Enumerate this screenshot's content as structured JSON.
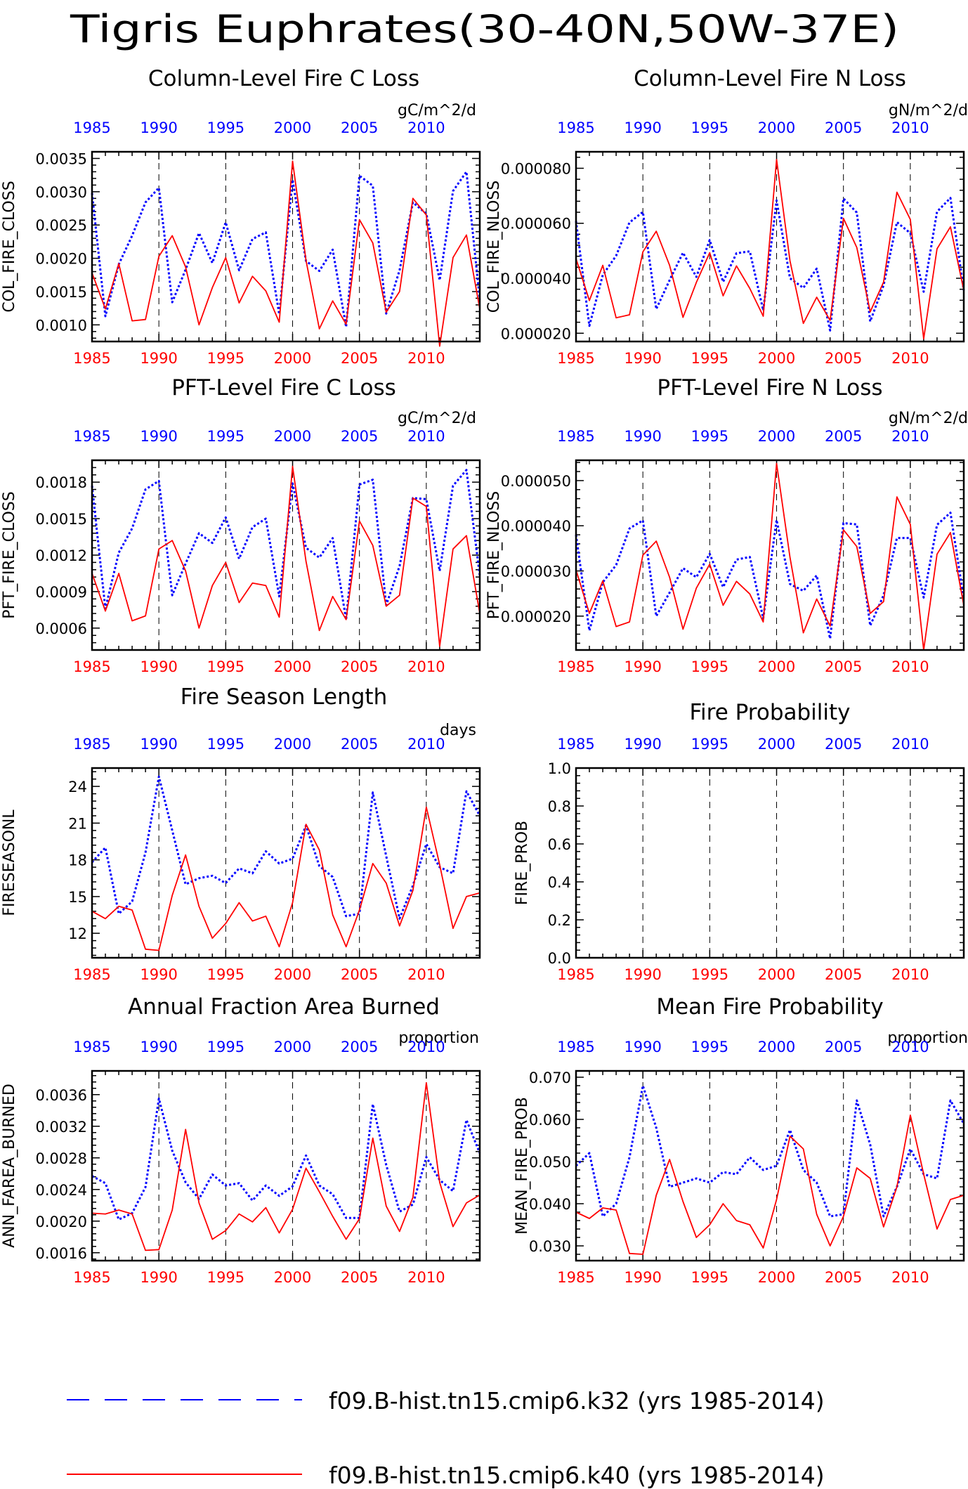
{
  "title": "Tigris Euphrates(30-40N,50W-37E)",
  "colors": {
    "case1": "#0000ff",
    "case2": "#ff0000",
    "axis": "#000000"
  },
  "legend": [
    {
      "label": "f09.B-hist.tn15.cmip6.k32 (yrs 1985-2014)",
      "color": "#0000ff",
      "style": "dashed"
    },
    {
      "label": "f09.B-hist.tn15.cmip6.k40 (yrs 1985-2014)",
      "color": "#ff0000",
      "style": "solid"
    }
  ],
  "chart_data": [
    {
      "type": "line",
      "title": "Column-Level Fire C Loss",
      "units": "gC/m^2/d",
      "ylabel": "COL_FIRE_CLOSS",
      "xlim": [
        1985,
        2014
      ],
      "ylim": [
        0.00075,
        0.0036
      ],
      "yticks": [
        0.001,
        0.0015,
        0.002,
        0.0025,
        0.003,
        0.0035
      ],
      "ytick_labels": [
        "0.0010",
        "0.0015",
        "0.0020",
        "0.0025",
        "0.0030",
        "0.0035"
      ],
      "xticks": [
        1985,
        1990,
        1995,
        2000,
        2005,
        2010
      ],
      "x": [
        1985,
        1986,
        1987,
        1988,
        1989,
        1990,
        1991,
        1992,
        1993,
        1994,
        1995,
        1996,
        1997,
        1998,
        1999,
        2000,
        2001,
        2002,
        2003,
        2004,
        2005,
        2006,
        2007,
        2008,
        2009,
        2010,
        2011,
        2012,
        2013,
        2014
      ],
      "series": [
        {
          "name": "f09.B-hist.tn15.cmip6.k32 (yrs 1985-2014)",
          "values": [
            0.00298,
            0.00113,
            0.00191,
            0.00234,
            0.00284,
            0.00306,
            0.00134,
            0.00183,
            0.00238,
            0.00193,
            0.00254,
            0.00182,
            0.00229,
            0.00239,
            0.00116,
            0.00318,
            0.00196,
            0.00181,
            0.00213,
            0.00097,
            0.00324,
            0.00309,
            0.00117,
            0.00182,
            0.00284,
            0.00267,
            0.00167,
            0.00301,
            0.0033,
            0.00138
          ]
        },
        {
          "name": "f09.B-hist.tn15.cmip6.k40 (yrs 1985-2014)",
          "values": [
            0.00178,
            0.00124,
            0.00192,
            0.00106,
            0.00108,
            0.00203,
            0.00234,
            0.00187,
            0.001,
            0.00156,
            0.00201,
            0.00133,
            0.00173,
            0.00151,
            0.00104,
            0.00346,
            0.00197,
            0.00094,
            0.00136,
            0.00101,
            0.00258,
            0.00223,
            0.00119,
            0.0015,
            0.0029,
            0.00265,
            0.00068,
            0.00201,
            0.00235,
            0.00124
          ]
        }
      ]
    },
    {
      "type": "line",
      "title": "Column-Level Fire N Loss",
      "units": "gN/m^2/d",
      "ylabel": "COL_FIRE_NLOSS",
      "xlim": [
        1985,
        2014
      ],
      "ylim": [
        1.7e-05,
        8.6e-05
      ],
      "yticks": [
        2e-05,
        4e-05,
        6e-05,
        8e-05
      ],
      "ytick_labels": [
        "0.000020",
        "0.000040",
        "0.000060",
        "0.000080"
      ],
      "xticks": [
        1985,
        1990,
        1995,
        2000,
        2005,
        2010
      ],
      "x": [
        1985,
        1986,
        1987,
        1988,
        1989,
        1990,
        1991,
        1992,
        1993,
        1994,
        1995,
        1996,
        1997,
        1998,
        1999,
        2000,
        2001,
        2002,
        2003,
        2004,
        2005,
        2006,
        2007,
        2008,
        2009,
        2010,
        2011,
        2012,
        2013,
        2014
      ],
      "series": [
        {
          "name": "f09.B-hist.tn15.cmip6.k32 (yrs 1985-2014)",
          "values": [
            6.08e-05,
            2.27e-05,
            4.12e-05,
            4.82e-05,
            6.03e-05,
            6.41e-05,
            2.88e-05,
            3.93e-05,
            4.93e-05,
            4.05e-05,
            5.39e-05,
            3.87e-05,
            4.91e-05,
            4.98e-05,
            2.83e-05,
            6.83e-05,
            4e-05,
            3.65e-05,
            4.35e-05,
            2.1e-05,
            6.9e-05,
            6.39e-05,
            2.43e-05,
            3.74e-05,
            6.04e-05,
            5.64e-05,
            3.51e-05,
            6.42e-05,
            6.92e-05,
            3.56e-05
          ]
        },
        {
          "name": "f09.B-hist.tn15.cmip6.k40 (yrs 1985-2014)",
          "values": [
            4.71e-05,
            3.19e-05,
            4.47e-05,
            2.56e-05,
            2.67e-05,
            4.96e-05,
            5.71e-05,
            4.47e-05,
            2.58e-05,
            3.85e-05,
            4.93e-05,
            3.36e-05,
            4.45e-05,
            3.63e-05,
            2.62e-05,
            8.32e-05,
            4.63e-05,
            2.36e-05,
            3.31e-05,
            2.47e-05,
            6.18e-05,
            5.12e-05,
            2.78e-05,
            3.86e-05,
            7.13e-05,
            6.14e-05,
            1.8e-05,
            5.07e-05,
            5.87e-05,
            3.56e-05
          ]
        }
      ]
    },
    {
      "type": "line",
      "title": "PFT-Level Fire C Loss",
      "units": "gC/m^2/d",
      "ylabel": "PFT_FIRE_CLOSS",
      "xlim": [
        1985,
        2014
      ],
      "ylim": [
        0.00042,
        0.00198
      ],
      "yticks": [
        0.0006,
        0.0009,
        0.0012,
        0.0015,
        0.0018
      ],
      "ytick_labels": [
        "0.0006",
        "0.0009",
        "0.0012",
        "0.0015",
        "0.0018"
      ],
      "xticks": [
        1985,
        1990,
        1995,
        2000,
        2005,
        2010
      ],
      "x": [
        1985,
        1986,
        1987,
        1988,
        1989,
        1990,
        1991,
        1992,
        1993,
        1994,
        1995,
        1996,
        1997,
        1998,
        1999,
        2000,
        2001,
        2002,
        2003,
        2004,
        2005,
        2006,
        2007,
        2008,
        2009,
        2010,
        2011,
        2012,
        2013,
        2014
      ],
      "series": [
        {
          "name": "f09.B-hist.tn15.cmip6.k32 (yrs 1985-2014)",
          "values": [
            0.00177,
            0.00076,
            0.00122,
            0.00142,
            0.00174,
            0.00181,
            0.00087,
            0.00113,
            0.00138,
            0.0013,
            0.00151,
            0.00117,
            0.00143,
            0.0015,
            0.00086,
            0.00179,
            0.00126,
            0.00118,
            0.00134,
            0.00067,
            0.00178,
            0.00182,
            0.00079,
            0.00111,
            0.00167,
            0.00166,
            0.00107,
            0.00177,
            0.0019,
            0.00103
          ]
        },
        {
          "name": "f09.B-hist.tn15.cmip6.k40 (yrs 1985-2014)",
          "values": [
            0.00105,
            0.00074,
            0.00105,
            0.00066,
            0.0007,
            0.00125,
            0.00132,
            0.00107,
            0.0006,
            0.00095,
            0.00114,
            0.00081,
            0.00097,
            0.00095,
            0.00069,
            0.00193,
            0.00115,
            0.00058,
            0.00086,
            0.00067,
            0.00148,
            0.00128,
            0.00078,
            0.00087,
            0.00167,
            0.0016,
            0.00045,
            0.00125,
            0.00136,
            0.00072
          ]
        }
      ]
    },
    {
      "type": "line",
      "title": "PFT-Level Fire N Loss",
      "units": "gN/m^2/d",
      "ylabel": "PFT_FIRE_NLOSS",
      "xlim": [
        1985,
        2014
      ],
      "ylim": [
        1.25e-05,
        5.45e-05
      ],
      "yticks": [
        2e-05,
        3e-05,
        4e-05,
        5e-05
      ],
      "ytick_labels": [
        "0.000020",
        "0.000030",
        "0.000040",
        "0.000050"
      ],
      "xticks": [
        1985,
        1990,
        1995,
        2000,
        2005,
        2010
      ],
      "x": [
        1985,
        1986,
        1987,
        1988,
        1989,
        1990,
        1991,
        1992,
        1993,
        1994,
        1995,
        1996,
        1997,
        1998,
        1999,
        2000,
        2001,
        2002,
        2003,
        2004,
        2005,
        2006,
        2007,
        2008,
        2009,
        2010,
        2011,
        2012,
        2013,
        2014
      ],
      "series": [
        {
          "name": "f09.B-hist.tn15.cmip6.k32 (yrs 1985-2014)",
          "values": [
            3.8e-05,
            1.68e-05,
            2.75e-05,
            3.13e-05,
            3.94e-05,
            4.12e-05,
            2e-05,
            2.52e-05,
            3.06e-05,
            2.86e-05,
            3.38e-05,
            2.64e-05,
            3.25e-05,
            3.31e-05,
            1.95e-05,
            4.13e-05,
            2.71e-05,
            2.56e-05,
            2.9e-05,
            1.5e-05,
            4.06e-05,
            4.03e-05,
            1.79e-05,
            2.46e-05,
            3.73e-05,
            3.73e-05,
            2.41e-05,
            4.02e-05,
            4.29e-05,
            2.38e-05
          ]
        },
        {
          "name": "f09.B-hist.tn15.cmip6.k40 (yrs 1985-2014)",
          "values": [
            3.02e-05,
            2.06e-05,
            2.78e-05,
            1.77e-05,
            1.87e-05,
            3.35e-05,
            3.66e-05,
            2.86e-05,
            1.71e-05,
            2.62e-05,
            3.15e-05,
            2.24e-05,
            2.77e-05,
            2.49e-05,
            1.87e-05,
            5.38e-05,
            3.3e-05,
            1.63e-05,
            2.38e-05,
            1.78e-05,
            3.91e-05,
            3.54e-05,
            2.06e-05,
            2.32e-05,
            4.64e-05,
            4.03e-05,
            1.25e-05,
            3.37e-05,
            3.85e-05,
            2.24e-05
          ]
        }
      ]
    },
    {
      "type": "line",
      "title": "Fire Season Length",
      "units": "days",
      "ylabel": "FIRESEASONL",
      "xlim": [
        1985,
        2014
      ],
      "ylim": [
        10.0,
        25.5
      ],
      "yticks": [
        12,
        15,
        18,
        21,
        24
      ],
      "ytick_labels": [
        "12",
        "15",
        "18",
        "21",
        "24"
      ],
      "xticks": [
        1985,
        1990,
        1995,
        2000,
        2005,
        2010
      ],
      "x": [
        1985,
        1986,
        1987,
        1988,
        1989,
        1990,
        1991,
        1992,
        1993,
        1994,
        1995,
        1996,
        1997,
        1998,
        1999,
        2000,
        2001,
        2002,
        2003,
        2004,
        2005,
        2006,
        2007,
        2008,
        2009,
        2010,
        2011,
        2012,
        2013,
        2014
      ],
      "series": [
        {
          "name": "f09.B-hist.tn15.cmip6.k32 (yrs 1985-2014)",
          "values": [
            17.8,
            19.0,
            13.6,
            14.6,
            18.6,
            24.8,
            20.4,
            16.0,
            16.5,
            16.7,
            16.1,
            17.3,
            16.9,
            18.7,
            17.7,
            18.1,
            20.8,
            17.5,
            16.6,
            13.4,
            13.6,
            23.5,
            18.3,
            13.2,
            15.9,
            19.3,
            17.4,
            16.9,
            23.6,
            21.6
          ]
        },
        {
          "name": "f09.B-hist.tn15.cmip6.k40 (yrs 1985-2014)",
          "values": [
            13.8,
            13.2,
            14.2,
            13.9,
            10.7,
            10.6,
            15.1,
            18.4,
            14.2,
            11.6,
            12.8,
            14.5,
            13.0,
            13.4,
            10.9,
            14.5,
            20.9,
            18.8,
            13.5,
            10.9,
            13.9,
            17.7,
            16.1,
            12.6,
            15.5,
            22.3,
            17.6,
            12.4,
            15.0,
            15.3
          ]
        }
      ]
    },
    {
      "type": "line",
      "title": "Fire Probability",
      "units": "",
      "ylabel": "FIRE_PROB",
      "xlim": [
        1985,
        2014
      ],
      "ylim": [
        0.0,
        1.0
      ],
      "yticks": [
        0.0,
        0.2,
        0.4,
        0.6,
        0.8,
        1.0
      ],
      "ytick_labels": [
        "0.0",
        "0.2",
        "0.4",
        "0.6",
        "0.8",
        "1.0"
      ],
      "xticks": [
        1985,
        1990,
        1995,
        2000,
        2005,
        2010
      ],
      "x": [],
      "series": []
    },
    {
      "type": "line",
      "title": "Annual Fraction Area Burned",
      "units": "proportion",
      "ylabel": "ANN_FAREA_BURNED",
      "xlim": [
        1985,
        2014
      ],
      "ylim": [
        0.0015,
        0.0039
      ],
      "yticks": [
        0.0016,
        0.002,
        0.0024,
        0.0028,
        0.0032,
        0.0036
      ],
      "ytick_labels": [
        "0.0016",
        "0.0020",
        "0.0024",
        "0.0028",
        "0.0032",
        "0.0036"
      ],
      "xticks": [
        1985,
        1990,
        1995,
        2000,
        2005,
        2010
      ],
      "x": [
        1985,
        1986,
        1987,
        1988,
        1989,
        1990,
        1991,
        1992,
        1993,
        1994,
        1995,
        1996,
        1997,
        1998,
        1999,
        2000,
        2001,
        2002,
        2003,
        2004,
        2005,
        2006,
        2007,
        2008,
        2009,
        2010,
        2011,
        2012,
        2013,
        2014
      ],
      "series": [
        {
          "name": "f09.B-hist.tn15.cmip6.k32 (yrs 1985-2014)",
          "values": [
            0.00257,
            0.00248,
            0.00202,
            0.0021,
            0.00243,
            0.00355,
            0.00289,
            0.00249,
            0.00228,
            0.00259,
            0.00245,
            0.00248,
            0.00226,
            0.00245,
            0.00232,
            0.00244,
            0.00283,
            0.00245,
            0.00234,
            0.00204,
            0.00204,
            0.00348,
            0.00271,
            0.00212,
            0.00221,
            0.00281,
            0.00252,
            0.00238,
            0.00328,
            0.00286
          ]
        },
        {
          "name": "f09.B-hist.tn15.cmip6.k40 (yrs 1985-2014)",
          "values": [
            0.0021,
            0.00209,
            0.00214,
            0.00209,
            0.00163,
            0.00164,
            0.00214,
            0.00316,
            0.00223,
            0.00177,
            0.00188,
            0.00209,
            0.00199,
            0.00217,
            0.00185,
            0.00215,
            0.00267,
            0.00237,
            0.00206,
            0.00177,
            0.00203,
            0.00305,
            0.00219,
            0.00187,
            0.0023,
            0.00375,
            0.00249,
            0.00193,
            0.00223,
            0.00233
          ]
        }
      ]
    },
    {
      "type": "line",
      "title": "Mean Fire Probability",
      "units": "proportion",
      "ylabel": "MEAN_FIRE_PROB",
      "xlim": [
        1985,
        2014
      ],
      "ylim": [
        0.0265,
        0.0715
      ],
      "yticks": [
        0.03,
        0.04,
        0.05,
        0.06,
        0.07
      ],
      "ytick_labels": [
        "0.030",
        "0.040",
        "0.050",
        "0.060",
        "0.070"
      ],
      "xticks": [
        1985,
        1990,
        1995,
        2000,
        2005,
        2010
      ],
      "x": [
        1985,
        1986,
        1987,
        1988,
        1989,
        1990,
        1991,
        1992,
        1993,
        1994,
        1995,
        1996,
        1997,
        1998,
        1999,
        2000,
        2001,
        2002,
        2003,
        2004,
        2005,
        2006,
        2007,
        2008,
        2009,
        2010,
        2011,
        2012,
        2013,
        2014
      ],
      "series": [
        {
          "name": "f09.B-hist.tn15.cmip6.k32 (yrs 1985-2014)",
          "values": [
            0.049,
            0.052,
            0.037,
            0.04,
            0.051,
            0.068,
            0.058,
            0.044,
            0.045,
            0.046,
            0.045,
            0.0475,
            0.047,
            0.051,
            0.048,
            0.049,
            0.0575,
            0.048,
            0.045,
            0.037,
            0.0375,
            0.0645,
            0.054,
            0.037,
            0.044,
            0.053,
            0.047,
            0.046,
            0.0645,
            0.059
          ]
        },
        {
          "name": "f09.B-hist.tn15.cmip6.k40 (yrs 1985-2014)",
          "values": [
            0.038,
            0.0365,
            0.039,
            0.0385,
            0.0282,
            0.028,
            0.042,
            0.0505,
            0.0405,
            0.032,
            0.035,
            0.04,
            0.036,
            0.035,
            0.0295,
            0.041,
            0.056,
            0.053,
            0.0375,
            0.03,
            0.037,
            0.0485,
            0.046,
            0.0345,
            0.044,
            0.061,
            0.047,
            0.034,
            0.041,
            0.042
          ]
        }
      ]
    }
  ]
}
